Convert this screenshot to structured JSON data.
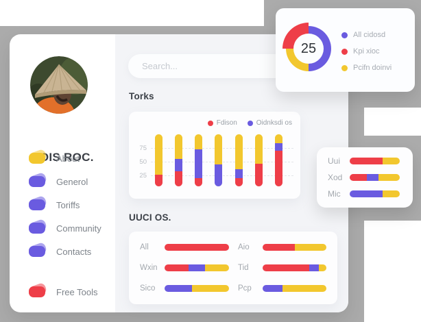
{
  "colors": {
    "red": "#ee3e48",
    "purple": "#6a5be0",
    "yellow": "#f2c72e",
    "gray_bg": "#ababab",
    "panel": "#f3f4f7"
  },
  "sidebar": {
    "profile_name": "DOIS ROC.",
    "items": [
      {
        "label": "About",
        "color": "#f2c72e"
      },
      {
        "label": "Generol",
        "color": "#6a5be0"
      },
      {
        "label": "Toriffs",
        "color": "#6a5be0"
      },
      {
        "label": "Community",
        "color": "#6a5be0"
      },
      {
        "label": "Contacts",
        "color": "#6a5be0"
      }
    ],
    "footer_items": [
      {
        "label": "Free Tools",
        "color": "#ee3e48"
      }
    ]
  },
  "search": {
    "placeholder": "Search..."
  },
  "donut_card": {
    "value": "25",
    "segments": [
      {
        "color": "purple",
        "pct": 50
      },
      {
        "color": "yellow",
        "pct": 25
      },
      {
        "color": "red",
        "pct": 25
      }
    ],
    "legend": [
      {
        "label": "All cidosd",
        "color": "#6a5be0"
      },
      {
        "label": "Kpi xioc",
        "color": "#ee3e48"
      },
      {
        "label": "Pcifn doinvi",
        "color": "#f2c72e"
      }
    ]
  },
  "torks": {
    "title": "Torks",
    "legend": [
      {
        "label": "Fdison",
        "color": "#ee3e48"
      },
      {
        "label": "Oidnksdi os",
        "color": "#6a5be0"
      }
    ],
    "y_ticks": [
      "75",
      "50",
      "25"
    ],
    "bars": [
      {
        "yellow": 78,
        "purple": 0,
        "red": 22
      },
      {
        "yellow": 47,
        "purple": 24,
        "red": 29
      },
      {
        "yellow": 29,
        "purple": 55,
        "red": 16
      },
      {
        "yellow": 58,
        "purple": 42,
        "red": 0
      },
      {
        "yellow": 67,
        "purple": 17,
        "red": 16
      },
      {
        "yellow": 57,
        "purple": 0,
        "red": 43
      },
      {
        "yellow": 17,
        "purple": 14,
        "red": 69
      }
    ]
  },
  "uuci": {
    "title": "UUCI OS.",
    "left_rows": [
      {
        "label": "All",
        "segments": [
          [
            "red",
            100
          ]
        ]
      },
      {
        "label": "Wxin",
        "segments": [
          [
            "red",
            37
          ],
          [
            "purple",
            26
          ],
          [
            "yellow",
            37
          ]
        ]
      },
      {
        "label": "Sico",
        "segments": [
          [
            "purple",
            43
          ],
          [
            "yellow",
            57
          ]
        ]
      }
    ],
    "right_rows": [
      {
        "label": "Aio",
        "segments": [
          [
            "red",
            50
          ],
          [
            "yellow",
            50
          ]
        ]
      },
      {
        "label": "Tid",
        "segments": [
          [
            "red",
            73
          ],
          [
            "purple",
            15
          ],
          [
            "yellow",
            12
          ]
        ]
      },
      {
        "label": "Pcp",
        "segments": [
          [
            "purple",
            31
          ],
          [
            "yellow",
            69
          ]
        ]
      }
    ]
  },
  "side_card": {
    "rows": [
      {
        "label": "Uui",
        "segments": [
          [
            "red",
            66
          ],
          [
            "yellow",
            34
          ]
        ]
      },
      {
        "label": "Xod",
        "segments": [
          [
            "red",
            34
          ],
          [
            "purple",
            23
          ],
          [
            "yellow",
            43
          ]
        ]
      },
      {
        "label": "Mic",
        "segments": [
          [
            "purple",
            66
          ],
          [
            "yellow",
            34
          ]
        ]
      }
    ]
  }
}
